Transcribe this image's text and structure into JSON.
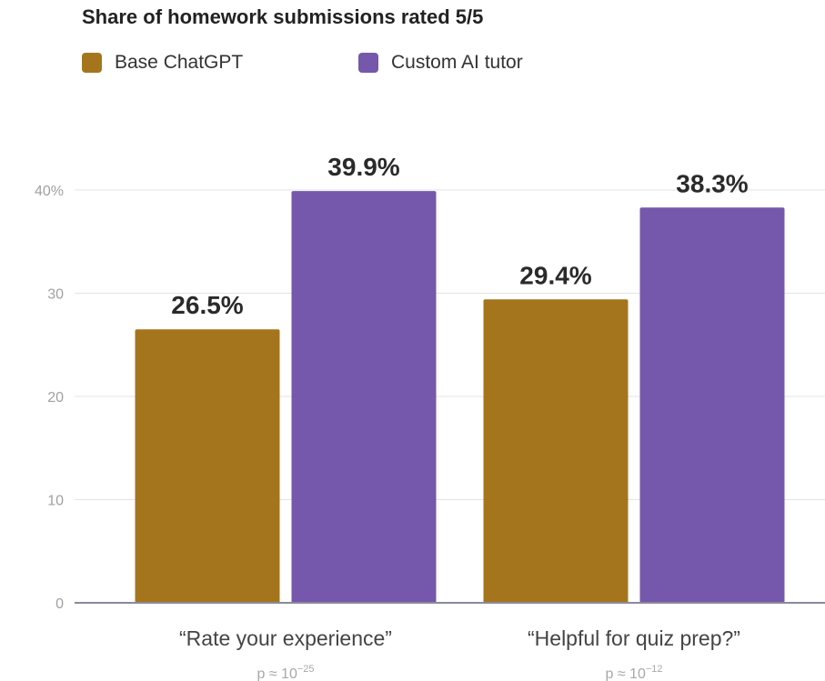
{
  "chart_data": {
    "type": "bar",
    "title": "Share of homework submissions rated 5/5",
    "xlabel": "",
    "ylabel": "",
    "ylim": [
      0,
      40
    ],
    "y_ticks": [
      {
        "value": 0,
        "label": "0"
      },
      {
        "value": 10,
        "label": "10"
      },
      {
        "value": 20,
        "label": "20"
      },
      {
        "value": 30,
        "label": "30"
      },
      {
        "value": 40,
        "label": "40%"
      }
    ],
    "grid": true,
    "legend_position": "top-left",
    "categories": [
      "“Rate your experience”",
      "“Helpful for quiz prep?”"
    ],
    "category_notes": [
      {
        "base": "p ≈ 10",
        "exponent": "−25"
      },
      {
        "base": "p ≈ 10",
        "exponent": "−12"
      }
    ],
    "series": [
      {
        "name": "Base ChatGPT",
        "color": "#a5751d",
        "values": [
          26.5,
          29.4
        ],
        "labels": [
          "26.5%",
          "29.4%"
        ]
      },
      {
        "name": "Custom AI tutor",
        "color": "#7557ab",
        "values": [
          39.9,
          38.3
        ],
        "labels": [
          "39.9%",
          "38.3%"
        ]
      }
    ]
  }
}
